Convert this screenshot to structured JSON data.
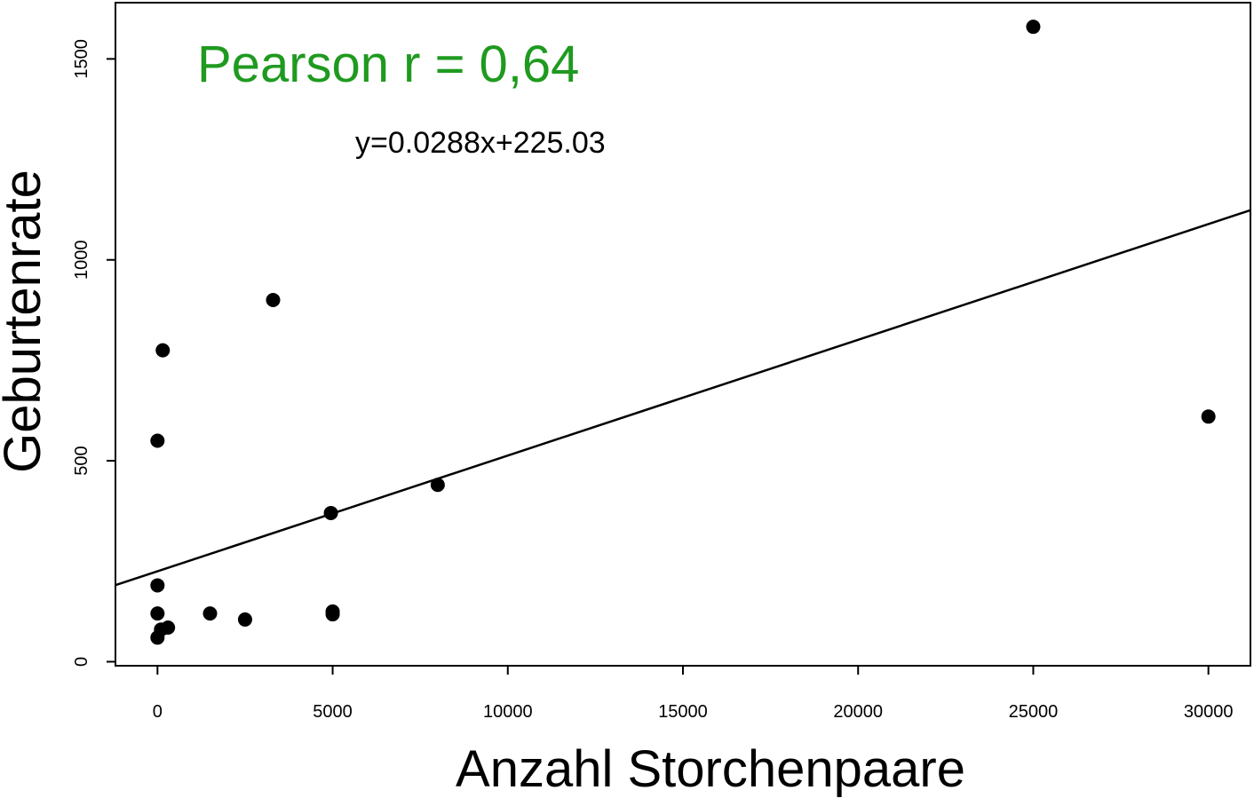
{
  "chart_data": {
    "type": "scatter",
    "title": "",
    "xlabel": "Anzahl Storchenpaare",
    "ylabel": "Geburtenrate",
    "xlim": [
      -1200,
      31200
    ],
    "ylim": [
      -10,
      1640
    ],
    "x_ticks": [
      0,
      5000,
      10000,
      15000,
      20000,
      25000,
      30000
    ],
    "y_ticks": [
      0,
      500,
      1000,
      1500
    ],
    "x_tick_labels": [
      "0",
      "5000",
      "10000",
      "15000",
      "20000",
      "25000",
      "30000"
    ],
    "y_tick_labels": [
      "0",
      "500",
      "1000",
      "1500"
    ],
    "grid": false,
    "annotations": {
      "pearson": "Pearson r = 0,64",
      "equation": "y=0.0288x+225.03"
    },
    "regression": {
      "slope": 0.0288,
      "intercept": 225.03
    },
    "colors": {
      "pearson": "#1f9a1f",
      "points": "#000000",
      "line": "#000000"
    },
    "points": [
      {
        "x": 0,
        "y": 550
      },
      {
        "x": 150,
        "y": 775
      },
      {
        "x": 0,
        "y": 190
      },
      {
        "x": 0,
        "y": 120
      },
      {
        "x": 100,
        "y": 80
      },
      {
        "x": 300,
        "y": 85
      },
      {
        "x": 0,
        "y": 60
      },
      {
        "x": 1500,
        "y": 120
      },
      {
        "x": 2500,
        "y": 105
      },
      {
        "x": 3300,
        "y": 900
      },
      {
        "x": 4950,
        "y": 370
      },
      {
        "x": 5000,
        "y": 125
      },
      {
        "x": 5000,
        "y": 118
      },
      {
        "x": 8000,
        "y": 440
      },
      {
        "x": 25000,
        "y": 1580
      },
      {
        "x": 30000,
        "y": 610
      }
    ]
  }
}
